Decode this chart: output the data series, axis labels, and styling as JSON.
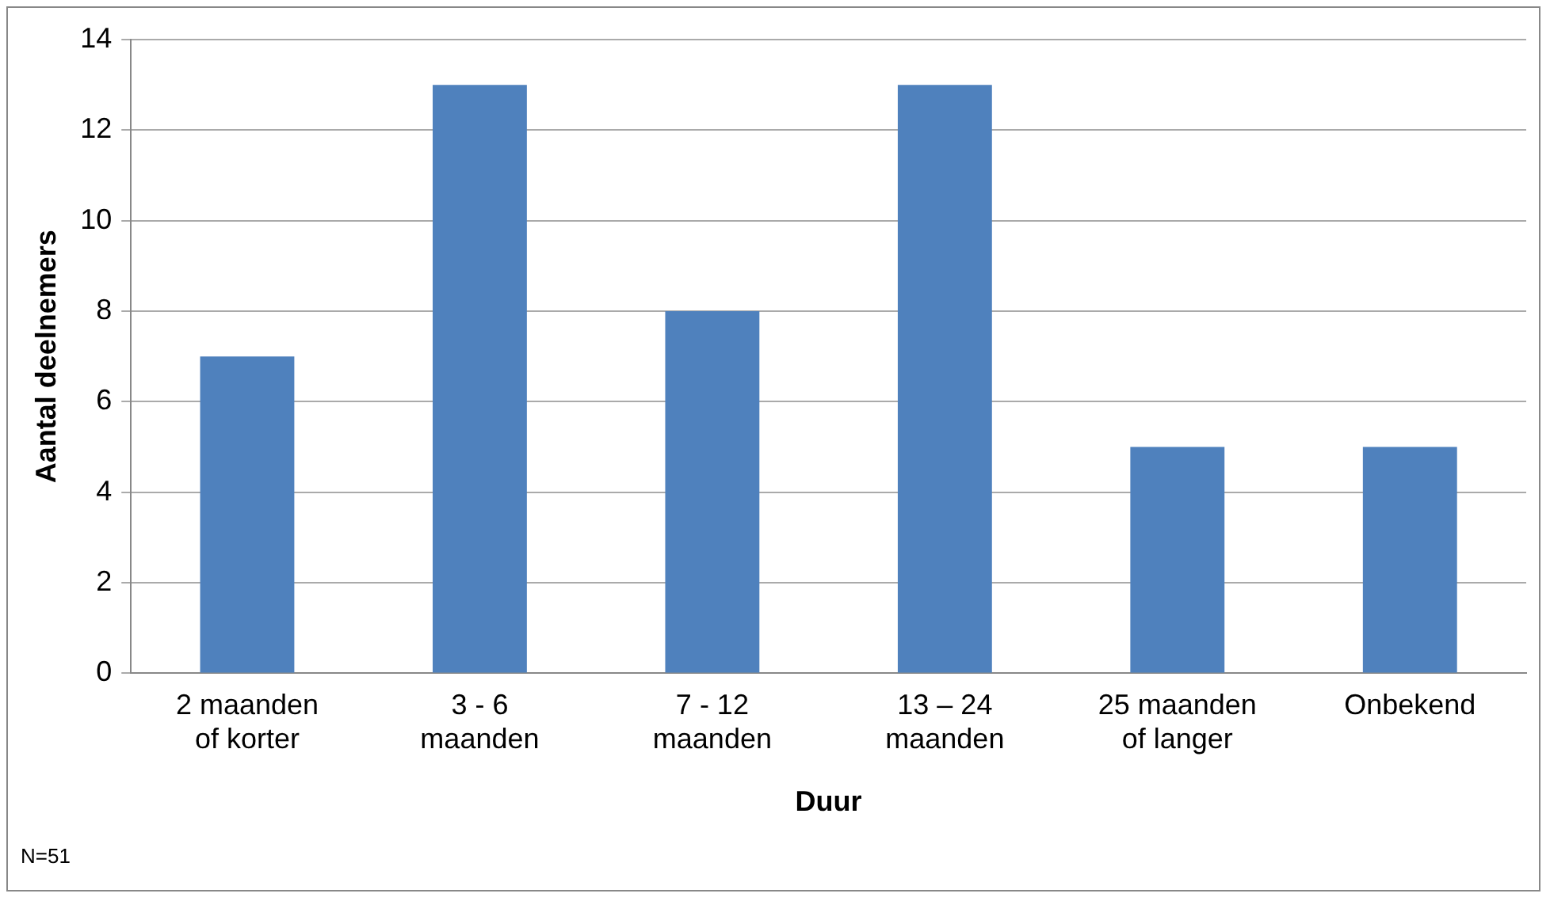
{
  "chart_data": {
    "type": "bar",
    "xlabel": "Duur",
    "ylabel": "Aantal deelnemers",
    "categories": [
      "2 maanden of korter",
      "3 - 6 maanden",
      "7 - 12 maanden",
      "13 – 24 maanden",
      "25 maanden of langer",
      "Onbekend"
    ],
    "values": [
      7,
      13,
      8,
      13,
      5,
      5
    ],
    "color": "#4f81bd",
    "ylim": [
      0,
      14
    ],
    "yticks": [
      0,
      2,
      4,
      6,
      8,
      10,
      12,
      14
    ],
    "grid": "y",
    "legend": false,
    "annotations": [
      "N=51"
    ]
  }
}
